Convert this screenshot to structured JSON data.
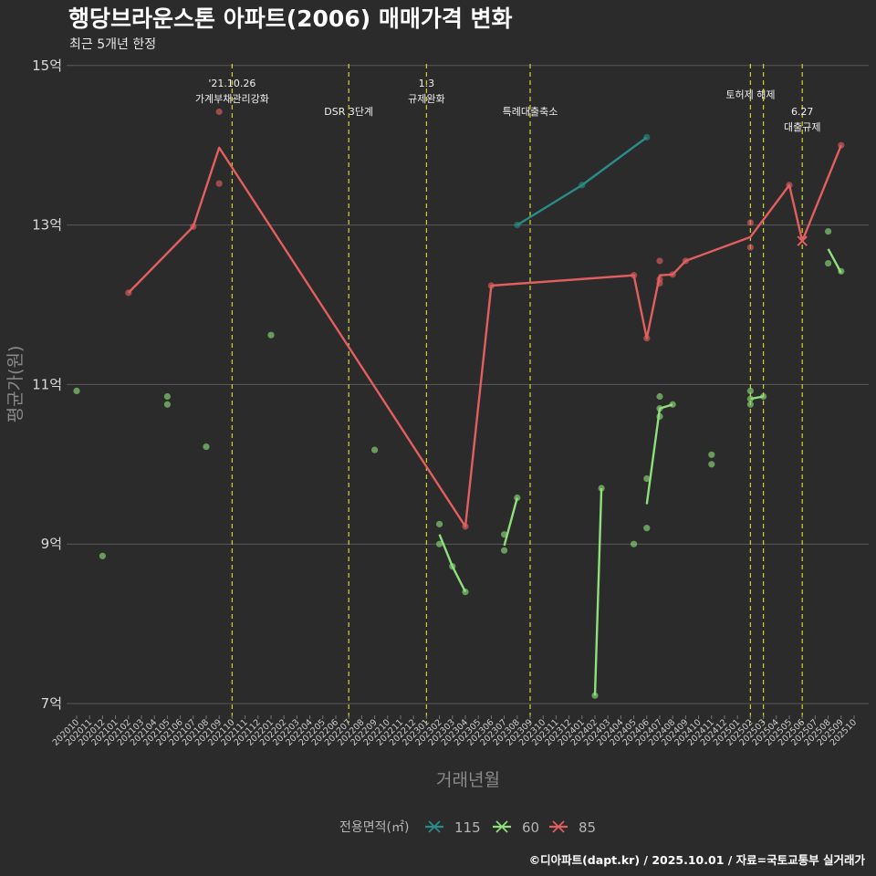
{
  "chart_data": {
    "type": "line",
    "title": "행당브라운스톤 아파트(2006) 매매가격 변화",
    "subtitle": "최근 5개년 한정",
    "xlabel": "거래년월",
    "ylabel": "평균가(원)",
    "caption": "©디아파트(dapt.kr) / 2025.10.01 / 자료=국토교통부 실거래가",
    "legend_title": "전용면적(㎡)",
    "legend_position": "bottom",
    "grid": true,
    "ylim": [
      6.5,
      15.1
    ],
    "yticks": [
      7,
      9,
      11,
      13,
      15
    ],
    "ytick_labels": [
      "7억",
      "9억",
      "11억",
      "13억",
      "15억"
    ],
    "x_categories": [
      "202010",
      "202011",
      "202012",
      "202101",
      "202102",
      "202103",
      "202104",
      "202105",
      "202106",
      "202107",
      "202108",
      "202109",
      "202110",
      "202111",
      "202112",
      "202201",
      "202202",
      "202203",
      "202204",
      "202205",
      "202206",
      "202207",
      "202208",
      "202209",
      "202210",
      "202211",
      "202212",
      "202301",
      "202302",
      "202303",
      "202304",
      "202305",
      "202306",
      "202307",
      "202308",
      "202309",
      "202310",
      "202311",
      "202312",
      "202401",
      "202402",
      "202403",
      "202404",
      "202405",
      "202406",
      "202407",
      "202408",
      "202409",
      "202410",
      "202411",
      "202412",
      "202501",
      "202502",
      "202503",
      "202504",
      "202505",
      "202506",
      "202507",
      "202508",
      "202509",
      "202510"
    ],
    "events": [
      {
        "x": "202110",
        "label_lines": [
          "'21.10.26",
          "가계부채관리강화"
        ],
        "level": 0
      },
      {
        "x": "202207",
        "label_lines": [
          "DSR 3단계"
        ],
        "level": 1
      },
      {
        "x": "202301",
        "label_lines": [
          "1.3",
          "규제완화"
        ],
        "level": 0
      },
      {
        "x": "202309",
        "label_lines": [
          "특례대출축소"
        ],
        "level": 1
      },
      {
        "x": "202502",
        "label_lines": [
          "토허제 해제"
        ],
        "level": 0.4
      },
      {
        "x": "202503",
        "label_lines": [],
        "level": 0
      },
      {
        "x": "202506",
        "label_lines": [
          "6.27",
          "대출규제"
        ],
        "level": 1
      }
    ],
    "series": [
      {
        "name": "115",
        "color": "#2a8c86",
        "line": [
          [
            "202308",
            13.0
          ],
          [
            "202401",
            13.5
          ],
          [
            "202406",
            14.1
          ]
        ],
        "points": [
          [
            "202308",
            13.0
          ],
          [
            "202401",
            13.5
          ],
          [
            "202406",
            14.1
          ]
        ]
      },
      {
        "name": "60",
        "color": "#8ee07a",
        "line_segments": [
          [
            [
              "202302",
              9.12
            ],
            [
              "202303",
              8.72
            ],
            [
              "202304",
              8.4
            ]
          ],
          [
            [
              "202307",
              8.98
            ],
            [
              "202308",
              9.58
            ]
          ],
          [
            [
              "202402",
              7.1
            ],
            [
              "202402.5",
              9.7
            ]
          ],
          [
            [
              "202406",
              9.5
            ],
            [
              "202407",
              10.7
            ],
            [
              "202408",
              10.75
            ]
          ],
          [
            [
              "202502",
              10.82
            ],
            [
              "202503",
              10.85
            ]
          ],
          [
            [
              "202508",
              12.7
            ],
            [
              "202509",
              12.4
            ]
          ]
        ],
        "points": [
          [
            "202010",
            10.92
          ],
          [
            "202012",
            8.85
          ],
          [
            "202105",
            10.85
          ],
          [
            "202105",
            10.75
          ],
          [
            "202108",
            10.22
          ],
          [
            "202201",
            11.62
          ],
          [
            "202209",
            10.18
          ],
          [
            "202302",
            9.25
          ],
          [
            "202302",
            9.0
          ],
          [
            "202303",
            8.72
          ],
          [
            "202304",
            8.4
          ],
          [
            "202307",
            9.12
          ],
          [
            "202307",
            8.92
          ],
          [
            "202308",
            9.58
          ],
          [
            "202402",
            7.1
          ],
          [
            "202402.5",
            9.7
          ],
          [
            "202405",
            9.0
          ],
          [
            "202406",
            9.2
          ],
          [
            "202406",
            9.82
          ],
          [
            "202407",
            10.85
          ],
          [
            "202407",
            10.7
          ],
          [
            "202407",
            10.6
          ],
          [
            "202408",
            10.75
          ],
          [
            "202411",
            10.12
          ],
          [
            "202411",
            10.0
          ],
          [
            "202502",
            10.92
          ],
          [
            "202502",
            10.82
          ],
          [
            "202502",
            10.75
          ],
          [
            "202503",
            10.85
          ],
          [
            "202508",
            12.92
          ],
          [
            "202508",
            12.52
          ],
          [
            "202509",
            12.42
          ]
        ]
      },
      {
        "name": "85",
        "color": "#e35f5f",
        "line": [
          [
            "202102",
            12.15
          ],
          [
            "202107",
            12.98
          ],
          [
            "202109",
            13.97
          ],
          [
            "202304",
            9.22
          ],
          [
            "202306",
            12.24
          ],
          [
            "202405",
            12.37
          ],
          [
            "202406",
            11.58
          ],
          [
            "202407",
            12.37
          ],
          [
            "202408",
            12.38
          ],
          [
            "202409",
            12.55
          ],
          [
            "202502",
            12.85
          ],
          [
            "202505",
            13.5
          ],
          [
            "202506",
            12.8
          ],
          [
            "202509",
            14.0
          ]
        ],
        "points": [
          [
            "202102",
            12.15
          ],
          [
            "202107",
            12.98
          ],
          [
            "202109",
            14.42
          ],
          [
            "202109",
            13.52
          ],
          [
            "202304",
            9.22
          ],
          [
            "202306",
            12.24
          ],
          [
            "202405",
            12.37
          ],
          [
            "202406",
            11.58
          ],
          [
            "202407",
            12.55
          ],
          [
            "202407",
            12.32
          ],
          [
            "202407",
            12.27
          ],
          [
            "202408",
            12.38
          ],
          [
            "202409",
            12.55
          ],
          [
            "202502",
            13.03
          ],
          [
            "202502",
            12.72
          ],
          [
            "202505",
            13.5
          ],
          [
            "202509",
            14.0
          ]
        ],
        "cross_points": [
          [
            "202506",
            12.8
          ]
        ]
      }
    ]
  }
}
